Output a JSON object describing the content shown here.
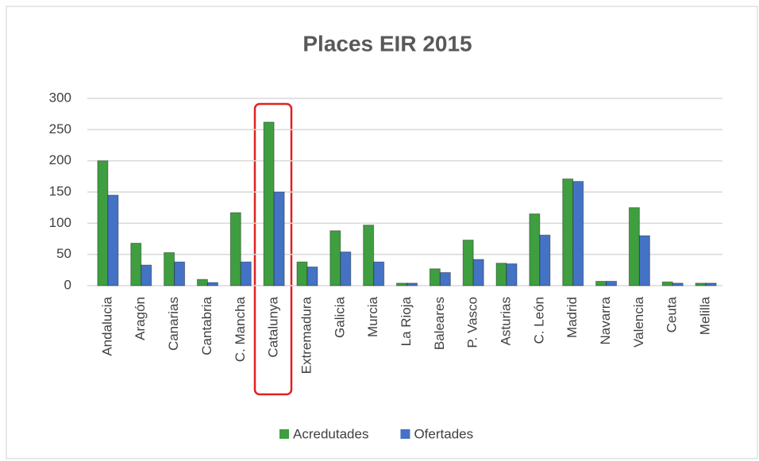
{
  "chart_data": {
    "type": "bar",
    "title": "Places EIR 2015",
    "categories": [
      "Andalucia",
      "Aragón",
      "Canarias",
      "Cantabria",
      "C. Mancha",
      "Catalunya",
      "Extremadura",
      "Galicia",
      "Murcia",
      "La Rioja",
      "Baleares",
      "P. Vasco",
      "Asturias",
      "C. León",
      "Madrid",
      "Navarra",
      "Valencia",
      "Ceuta",
      "Melilla"
    ],
    "series": [
      {
        "name": "Acredutades",
        "color": "#3f9e3f",
        "values": [
          200,
          68,
          53,
          10,
          117,
          262,
          38,
          88,
          97,
          4,
          27,
          73,
          36,
          115,
          171,
          7,
          125,
          6,
          4
        ]
      },
      {
        "name": "Ofertades",
        "color": "#4472c4",
        "values": [
          145,
          33,
          38,
          5,
          38,
          150,
          30,
          54,
          38,
          4,
          21,
          42,
          35,
          81,
          167,
          7,
          80,
          4,
          4
        ]
      }
    ],
    "ylim": [
      0,
      300
    ],
    "yticks": [
      0,
      50,
      100,
      150,
      200,
      250,
      300
    ],
    "grid": true,
    "legend": "bottom"
  }
}
